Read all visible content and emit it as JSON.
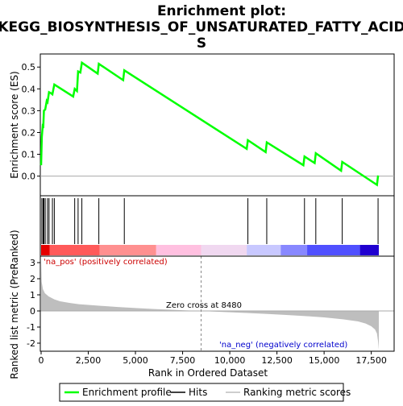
{
  "title_line1": "Enrichment plot:",
  "title_line2": "KEGG_BIOSYNTHESIS_OF_UNSATURATED_FATTY_ACID",
  "title_line3": "S",
  "colors": {
    "es_line": "#00ff00",
    "hits": "#000000",
    "metric_fill": "#bebebe",
    "zero_line": "#aaaaaa",
    "frame": "#000000"
  },
  "chart_data": [
    {
      "type": "line",
      "name": "enrichment",
      "ylabel": "Enrichment score (ES)",
      "xlim": [
        0,
        18500
      ],
      "ylim": [
        -0.09,
        0.56
      ],
      "yticks": [
        0.0,
        0.1,
        0.2,
        0.3,
        0.4,
        0.5
      ],
      "ytick_labels": [
        "0.0",
        "0.1",
        "0.2",
        "0.3",
        "0.4",
        "0.5"
      ],
      "series": [
        {
          "name": "Enrichment profile",
          "x": [
            0,
            40,
            80,
            110,
            150,
            220,
            300,
            340,
            420,
            520,
            600,
            700,
            1700,
            1780,
            1900,
            1960,
            2080,
            2160,
            3000,
            3060,
            4350,
            4410,
            10900,
            10960,
            11900,
            11960,
            13900,
            13960,
            14500,
            14560,
            15900,
            15960,
            17800,
            17860
          ],
          "y": [
            0.05,
            0.18,
            0.225,
            0.22,
            0.3,
            0.305,
            0.345,
            0.34,
            0.385,
            0.38,
            0.375,
            0.42,
            0.365,
            0.4,
            0.39,
            0.48,
            0.475,
            0.52,
            0.47,
            0.515,
            0.44,
            0.485,
            0.125,
            0.165,
            0.11,
            0.155,
            0.05,
            0.09,
            0.06,
            0.105,
            0.025,
            0.065,
            -0.04,
            0.003
          ]
        }
      ]
    },
    {
      "type": "scatter",
      "name": "hits",
      "hit_positions": [
        40,
        110,
        150,
        220,
        340,
        420,
        600,
        700,
        1780,
        1960,
        2160,
        3060,
        4410,
        10960,
        11960,
        13960,
        14560,
        15960,
        17860
      ]
    },
    {
      "type": "area",
      "name": "ranked_list_metric",
      "xlabel": "Rank in Ordered Dataset",
      "ylabel": "Ranked list metric (PreRanked)",
      "xlim": [
        0,
        18500
      ],
      "ylim": [
        -2.5,
        3.4
      ],
      "xticks": [
        0,
        2500,
        5000,
        7500,
        10000,
        12500,
        15000,
        17500
      ],
      "xtick_labels": [
        "0",
        "2,500",
        "5,000",
        "7,500",
        "10,000",
        "12,500",
        "15,000",
        "17,500"
      ],
      "yticks": [
        -2,
        -1,
        0,
        1,
        2,
        3
      ],
      "ytick_labels": [
        "-2",
        "-1",
        "0",
        "1",
        "2",
        "3"
      ],
      "zero_cross": 8480,
      "series": [
        {
          "name": "Ranking metric scores",
          "x": [
            0,
            30,
            100,
            200,
            400,
            700,
            1000,
            1500,
            2000,
            3000,
            4000,
            5000,
            6000,
            7000,
            8000,
            8480,
            9000,
            10000,
            11000,
            12000,
            13000,
            14000,
            15000,
            16000,
            16800,
            17200,
            17500,
            17700,
            17800,
            17860,
            17900
          ],
          "y": [
            3.2,
            1.8,
            1.35,
            1.1,
            0.9,
            0.72,
            0.6,
            0.5,
            0.42,
            0.33,
            0.25,
            0.18,
            0.12,
            0.07,
            0.02,
            0.0,
            -0.03,
            -0.08,
            -0.13,
            -0.19,
            -0.25,
            -0.32,
            -0.4,
            -0.52,
            -0.65,
            -0.78,
            -0.95,
            -1.15,
            -1.4,
            -1.9,
            -2.4
          ]
        }
      ],
      "annotations": {
        "pos": "'na_pos' (positively correlated)",
        "neg": "'na_neg' (negatively correlated)",
        "zero_cross": "Zero cross at 8480"
      }
    },
    {
      "type": "heatmap",
      "name": "rank_color_bar",
      "x_edges": [
        0,
        450,
        3100,
        6100,
        8480,
        10900,
        12700,
        14100,
        16900,
        17900
      ],
      "colors": [
        "#e60000",
        "#ff5a5a",
        "#ff9090",
        "#ffc0e0",
        "#f0d8f0",
        "#c8c8ff",
        "#8888ff",
        "#5050ff",
        "#2000d0"
      ]
    }
  ],
  "legend": {
    "items": [
      {
        "label": "Enrichment profile",
        "color": "#00ff00"
      },
      {
        "label": "Hits",
        "color": "#000000"
      },
      {
        "label": "Ranking metric scores",
        "color": "#bebebe"
      }
    ]
  }
}
